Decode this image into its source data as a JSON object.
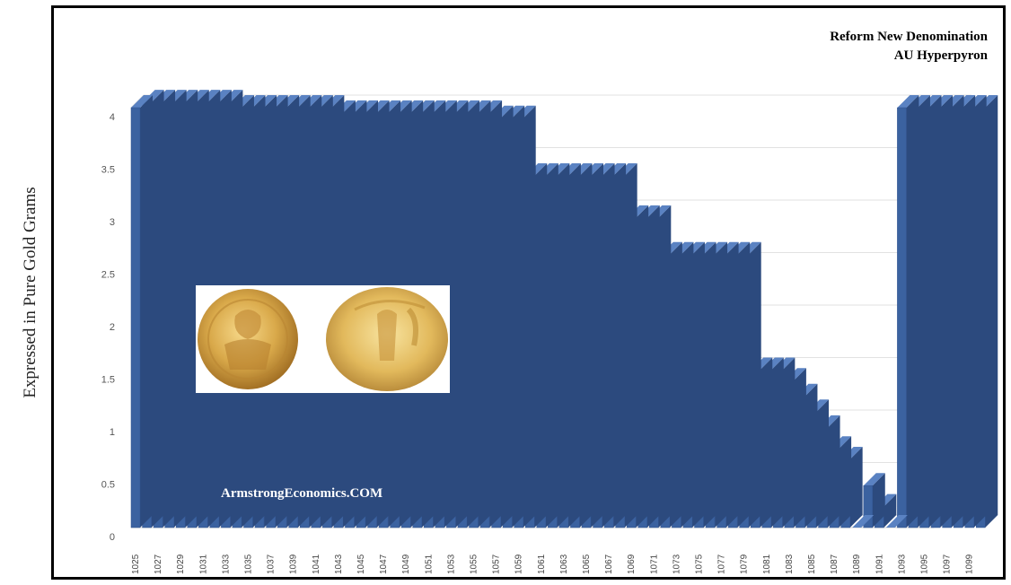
{
  "chart_data": {
    "type": "bar",
    "style": "3d-column",
    "ylabel": "Expressed in Pure Gold Grams",
    "xlabel": "",
    "ylim": [
      0,
      4
    ],
    "yticks": [
      "0",
      "0.5",
      "1",
      "1.5",
      "2",
      "2.5",
      "3",
      "3.5",
      "4"
    ],
    "grid": true,
    "bar_color": "#3b62a0",
    "annotations": [
      "Reform  New Denomination",
      "AU Hyperpyron"
    ],
    "watermark": "ArmstrongEconomics.COM",
    "image_panel": "two gold coins",
    "categories": [
      "1025",
      "1026",
      "1027",
      "1028",
      "1029",
      "1030",
      "1031",
      "1032",
      "1033",
      "1034",
      "1035",
      "1036",
      "1037",
      "1038",
      "1039",
      "1040",
      "1041",
      "1042",
      "1043",
      "1044",
      "1045",
      "1046",
      "1047",
      "1048",
      "1049",
      "1050",
      "1051",
      "1052",
      "1053",
      "1054",
      "1055",
      "1056",
      "1057",
      "1058",
      "1059",
      "1060",
      "1061",
      "1062",
      "1063",
      "1064",
      "1065",
      "1066",
      "1067",
      "1068",
      "1069",
      "1070",
      "1071",
      "1072",
      "1073",
      "1074",
      "1075",
      "1076",
      "1077",
      "1078",
      "1079",
      "1080",
      "1081",
      "1082",
      "1083",
      "1084",
      "1085",
      "1086",
      "1087",
      "1088",
      "1089",
      "1090",
      "1091",
      "1092",
      "1093",
      "1094",
      "1095",
      "1096",
      "1097",
      "1098",
      "1099",
      "1100"
    ],
    "values": [
      4.0,
      4.05,
      4.05,
      4.05,
      4.05,
      4.05,
      4.05,
      4.05,
      4.05,
      4.0,
      4.0,
      4.0,
      4.0,
      4.0,
      4.0,
      4.0,
      4.0,
      4.0,
      3.95,
      3.95,
      3.95,
      3.95,
      3.95,
      3.95,
      3.95,
      3.95,
      3.95,
      3.95,
      3.95,
      3.95,
      3.95,
      3.95,
      3.9,
      3.9,
      3.9,
      3.35,
      3.35,
      3.35,
      3.35,
      3.35,
      3.35,
      3.35,
      3.35,
      3.35,
      2.95,
      2.95,
      2.95,
      2.6,
      2.6,
      2.6,
      2.6,
      2.6,
      2.6,
      2.6,
      2.6,
      1.5,
      1.5,
      1.5,
      1.4,
      1.25,
      1.1,
      0.95,
      0.75,
      0.65,
      0,
      0.4,
      0.2,
      0,
      4.0,
      4.0,
      4.0,
      4.0,
      4.0,
      4.0,
      4.0,
      4.0
    ],
    "xtick_labels": [
      "1025",
      "1027",
      "1029",
      "1031",
      "1033",
      "1035",
      "1037",
      "1039",
      "1041",
      "1043",
      "1045",
      "1047",
      "1049",
      "1051",
      "1053",
      "1055",
      "1057",
      "1059",
      "1061",
      "1063",
      "1065",
      "1067",
      "1069",
      "1071",
      "1073",
      "1075",
      "1077",
      "1079",
      "1081",
      "1083",
      "1085",
      "1087",
      "1089",
      "1091",
      "1093",
      "1095",
      "1097",
      "1099"
    ]
  }
}
